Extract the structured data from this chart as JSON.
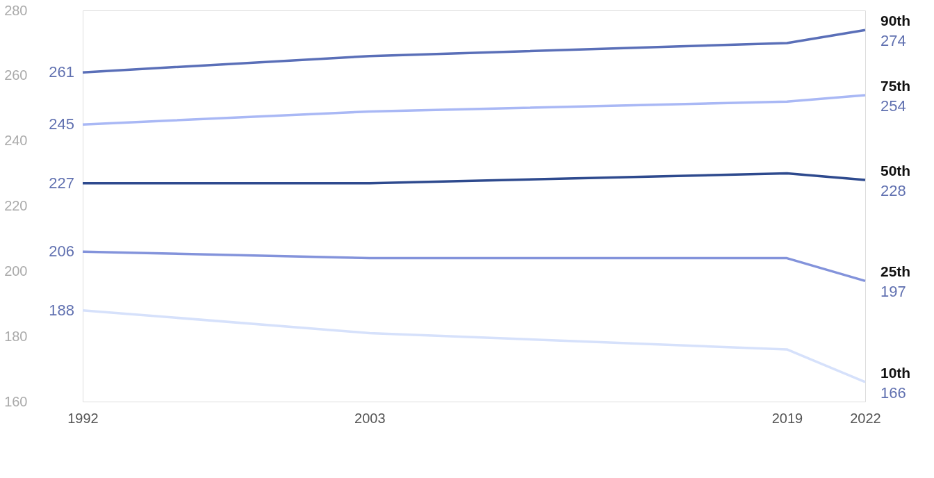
{
  "chart_data": {
    "type": "line",
    "x": [
      1992,
      2003,
      2019,
      2022
    ],
    "xlim": [
      1992,
      2022
    ],
    "xticks": [
      1992,
      2003,
      2019,
      2022
    ],
    "ylim": [
      160,
      280
    ],
    "yticks": [
      160,
      180,
      200,
      220,
      240,
      260,
      280
    ],
    "grid": false,
    "legend": false,
    "series": [
      {
        "name": "90th",
        "color": "#5a6fb8",
        "values": [
          261,
          266,
          270,
          274
        ],
        "value_labels": [
          "261",
          null,
          null,
          "274"
        ]
      },
      {
        "name": "75th",
        "color": "#a9b8f5",
        "values": [
          245,
          249,
          252,
          254
        ],
        "value_labels": [
          "245",
          null,
          null,
          "254"
        ]
      },
      {
        "name": "50th",
        "color": "#2e4a8e",
        "values": [
          227,
          227,
          230,
          228
        ],
        "value_labels": [
          "227",
          null,
          null,
          "228"
        ]
      },
      {
        "name": "25th",
        "color": "#8393db",
        "values": [
          206,
          204,
          204,
          197
        ],
        "value_labels": [
          "206",
          null,
          null,
          "197"
        ]
      },
      {
        "name": "10th",
        "color": "#d6e1fb",
        "values": [
          188,
          181,
          176,
          166
        ],
        "value_labels": [
          "188",
          null,
          null,
          "166"
        ]
      }
    ]
  }
}
